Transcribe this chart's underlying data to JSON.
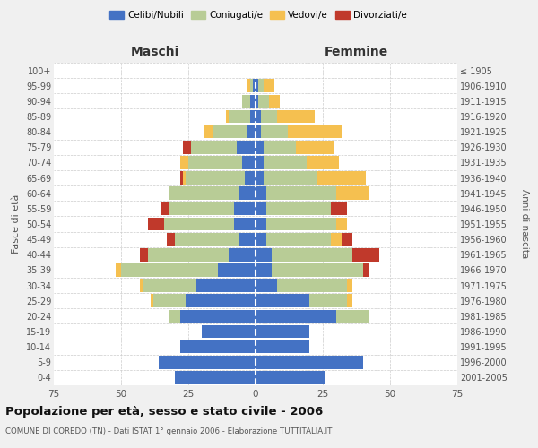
{
  "age_groups": [
    "0-4",
    "5-9",
    "10-14",
    "15-19",
    "20-24",
    "25-29",
    "30-34",
    "35-39",
    "40-44",
    "45-49",
    "50-54",
    "55-59",
    "60-64",
    "65-69",
    "70-74",
    "75-79",
    "80-84",
    "85-89",
    "90-94",
    "95-99",
    "100+"
  ],
  "birth_years": [
    "2001-2005",
    "1996-2000",
    "1991-1995",
    "1986-1990",
    "1981-1985",
    "1976-1980",
    "1971-1975",
    "1966-1970",
    "1961-1965",
    "1956-1960",
    "1951-1955",
    "1946-1950",
    "1941-1945",
    "1936-1940",
    "1931-1935",
    "1926-1930",
    "1921-1925",
    "1916-1920",
    "1911-1915",
    "1906-1910",
    "≤ 1905"
  ],
  "maschi": {
    "celibi": [
      30,
      36,
      28,
      20,
      28,
      26,
      22,
      14,
      10,
      6,
      8,
      8,
      6,
      4,
      5,
      7,
      3,
      2,
      2,
      1,
      0
    ],
    "coniugati": [
      0,
      0,
      0,
      0,
      4,
      12,
      20,
      36,
      30,
      24,
      26,
      24,
      26,
      22,
      20,
      17,
      13,
      8,
      3,
      1,
      0
    ],
    "vedovi": [
      0,
      0,
      0,
      0,
      0,
      1,
      1,
      2,
      0,
      0,
      0,
      0,
      0,
      1,
      3,
      0,
      3,
      1,
      0,
      1,
      0
    ],
    "divorziati": [
      0,
      0,
      0,
      0,
      0,
      0,
      0,
      0,
      3,
      3,
      6,
      3,
      0,
      1,
      0,
      3,
      0,
      0,
      0,
      0,
      0
    ]
  },
  "femmine": {
    "nubili": [
      26,
      40,
      20,
      20,
      30,
      20,
      8,
      6,
      6,
      4,
      4,
      4,
      4,
      3,
      3,
      3,
      2,
      2,
      1,
      1,
      0
    ],
    "coniugate": [
      0,
      0,
      0,
      0,
      12,
      14,
      26,
      34,
      30,
      24,
      26,
      24,
      26,
      20,
      16,
      12,
      10,
      6,
      4,
      2,
      0
    ],
    "vedove": [
      0,
      0,
      0,
      0,
      0,
      2,
      2,
      0,
      0,
      4,
      4,
      0,
      12,
      18,
      12,
      14,
      20,
      14,
      4,
      4,
      0
    ],
    "divorziate": [
      0,
      0,
      0,
      0,
      0,
      0,
      0,
      2,
      10,
      4,
      0,
      6,
      0,
      0,
      0,
      0,
      0,
      0,
      0,
      0,
      0
    ]
  },
  "colors": {
    "celibi_nubili": "#4472c4",
    "coniugati": "#b8cc96",
    "vedovi": "#f5c050",
    "divorziati": "#c0392b"
  },
  "xlim": 75,
  "title": "Popolazione per età, sesso e stato civile - 2006",
  "subtitle": "COMUNE DI COREDO (TN) - Dati ISTAT 1° gennaio 2006 - Elaborazione TUTTITALIA.IT",
  "xlabel_left": "Maschi",
  "xlabel_right": "Femmine",
  "ylabel_left": "Fasce di età",
  "ylabel_right": "Anni di nascita",
  "bg_color": "#f0f0f0",
  "plot_bg_color": "#ffffff"
}
